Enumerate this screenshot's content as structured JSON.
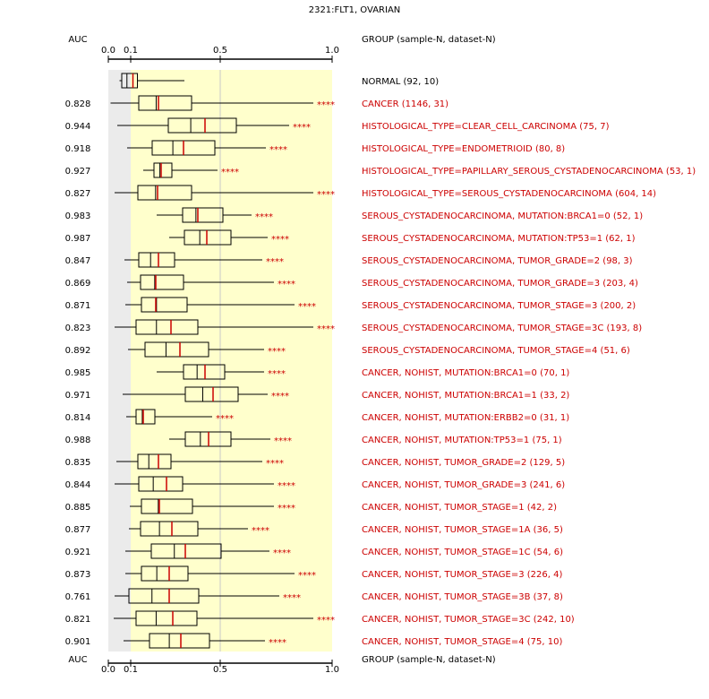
{
  "chart_data": {
    "type": "boxplot",
    "title": "2321:FLT1, OVARIAN",
    "auc_label": "AUC",
    "group_header": "GROUP (sample-N, dataset-N)",
    "x_ticks": [
      {
        "value": 0.0,
        "label": "0.0"
      },
      {
        "value": 0.1,
        "label": "0.1"
      },
      {
        "value": 0.5,
        "label": "0.5"
      },
      {
        "value": 1.0,
        "label": "1.0"
      }
    ],
    "xlim": [
      0.0,
      1.0
    ],
    "reference_band": [
      0.1,
      1.0
    ],
    "reference_line": 0.5,
    "colors": {
      "normal_text": "#000000",
      "group_text": "#cc0000",
      "median": "#cc0000",
      "band": "#ffffcc",
      "shade": "#ebebeb"
    },
    "groups": [
      {
        "label": "NORMAL (92, 10)",
        "auc": "",
        "sig": "",
        "is_reference": true,
        "stats": {
          "min": 0.05,
          "q1": 0.06,
          "median": 0.11,
          "q3": 0.13,
          "max": 0.34
        }
      },
      {
        "label": "CANCER (1146, 31)",
        "auc": "0.828",
        "sig": "****",
        "stats": {
          "min": 0.01,
          "q1": 0.136,
          "median": 0.224,
          "q3": 0.372,
          "max": 0.916
        }
      },
      {
        "label": "HISTOLOGICAL_TYPE=CLEAR_CELL_CARCINOMA (75, 7)",
        "auc": "0.944",
        "sig": "****",
        "stats": {
          "min": 0.04,
          "q1": 0.268,
          "median": 0.432,
          "q3": 0.572,
          "max": 0.808
        }
      },
      {
        "label": "HISTOLOGICAL_TYPE=ENDOMETRIOID (80, 8)",
        "auc": "0.918",
        "sig": "****",
        "stats": {
          "min": 0.084,
          "q1": 0.196,
          "median": 0.336,
          "q3": 0.476,
          "max": 0.704
        }
      },
      {
        "label": "HISTOLOGICAL_TYPE=PAPILLARY_SEROUS_CYSTADENOCARCINOMA (53, 1)",
        "auc": "0.927",
        "sig": "****",
        "stats": {
          "min": 0.156,
          "q1": 0.204,
          "median": 0.236,
          "q3": 0.284,
          "max": 0.488
        }
      },
      {
        "label": "HISTOLOGICAL_TYPE=SEROUS_CYSTADENOCARCINOMA (604, 14)",
        "auc": "0.827",
        "sig": "****",
        "stats": {
          "min": 0.028,
          "q1": 0.132,
          "median": 0.22,
          "q3": 0.372,
          "max": 0.916
        }
      },
      {
        "label": "SEROUS_CYSTADENOCARCINOMA, MUTATION:BRCA1=0 (52, 1)",
        "auc": "0.983",
        "sig": "****",
        "stats": {
          "min": 0.216,
          "q1": 0.332,
          "median": 0.4,
          "q3": 0.512,
          "max": 0.64
        }
      },
      {
        "label": "SEROUS_CYSTADENOCARCINOMA, MUTATION:TP53=1 (62, 1)",
        "auc": "0.987",
        "sig": "****",
        "stats": {
          "min": 0.272,
          "q1": 0.34,
          "median": 0.44,
          "q3": 0.548,
          "max": 0.712
        }
      },
      {
        "label": "SEROUS_CYSTADENOCARCINOMA, TUMOR_GRADE=2 (98, 3)",
        "auc": "0.847",
        "sig": "****",
        "stats": {
          "min": 0.072,
          "q1": 0.136,
          "median": 0.224,
          "q3": 0.296,
          "max": 0.688
        }
      },
      {
        "label": "SEROUS_CYSTADENOCARCINOMA, TUMOR_GRADE=3 (203, 4)",
        "auc": "0.869",
        "sig": "****",
        "stats": {
          "min": 0.084,
          "q1": 0.144,
          "median": 0.212,
          "q3": 0.336,
          "max": 0.74
        }
      },
      {
        "label": "SEROUS_CYSTADENOCARCINOMA, TUMOR_STAGE=3 (200, 2)",
        "auc": "0.871",
        "sig": "****",
        "stats": {
          "min": 0.076,
          "q1": 0.148,
          "median": 0.212,
          "q3": 0.352,
          "max": 0.832
        }
      },
      {
        "label": "SEROUS_CYSTADENOCARCINOMA, TUMOR_STAGE=3C (193, 8)",
        "auc": "0.823",
        "sig": "****",
        "stats": {
          "min": 0.028,
          "q1": 0.124,
          "median": 0.28,
          "q3": 0.4,
          "max": 0.916
        }
      },
      {
        "label": "SEROUS_CYSTADENOCARCINOMA, TUMOR_STAGE=4 (51, 6)",
        "auc": "0.892",
        "sig": "****",
        "stats": {
          "min": 0.088,
          "q1": 0.164,
          "median": 0.32,
          "q3": 0.448,
          "max": 0.696
        }
      },
      {
        "label": "CANCER, NOHIST, MUTATION:BRCA1=0 (70, 1)",
        "auc": "0.985",
        "sig": "****",
        "stats": {
          "min": 0.216,
          "q1": 0.336,
          "median": 0.432,
          "q3": 0.52,
          "max": 0.696
        }
      },
      {
        "label": "CANCER, NOHIST, MUTATION:BRCA1=1 (33, 2)",
        "auc": "0.971",
        "sig": "****",
        "stats": {
          "min": 0.064,
          "q1": 0.344,
          "median": 0.468,
          "q3": 0.58,
          "max": 0.712
        }
      },
      {
        "label": "CANCER, NOHIST, MUTATION:ERBB2=0 (31, 1)",
        "auc": "0.814",
        "sig": "****",
        "stats": {
          "min": 0.08,
          "q1": 0.124,
          "median": 0.156,
          "q3": 0.208,
          "max": 0.464
        }
      },
      {
        "label": "CANCER, NOHIST, MUTATION:TP53=1 (75, 1)",
        "auc": "0.988",
        "sig": "****",
        "stats": {
          "min": 0.272,
          "q1": 0.344,
          "median": 0.448,
          "q3": 0.548,
          "max": 0.724
        }
      },
      {
        "label": "CANCER, NOHIST, TUMOR_GRADE=2 (129, 5)",
        "auc": "0.835",
        "sig": "****",
        "stats": {
          "min": 0.036,
          "q1": 0.132,
          "median": 0.224,
          "q3": 0.28,
          "max": 0.688
        }
      },
      {
        "label": "CANCER, NOHIST, TUMOR_GRADE=3 (241, 6)",
        "auc": "0.844",
        "sig": "****",
        "stats": {
          "min": 0.028,
          "q1": 0.136,
          "median": 0.26,
          "q3": 0.332,
          "max": 0.74
        }
      },
      {
        "label": "CANCER, NOHIST, TUMOR_STAGE=1 (42, 2)",
        "auc": "0.885",
        "sig": "****",
        "stats": {
          "min": 0.096,
          "q1": 0.148,
          "median": 0.228,
          "q3": 0.376,
          "max": 0.74
        }
      },
      {
        "label": "CANCER, NOHIST, TUMOR_STAGE=1A (36, 5)",
        "auc": "0.877",
        "sig": "****",
        "stats": {
          "min": 0.092,
          "q1": 0.144,
          "median": 0.284,
          "q3": 0.4,
          "max": 0.624
        }
      },
      {
        "label": "CANCER, NOHIST, TUMOR_STAGE=1C (54, 6)",
        "auc": "0.921",
        "sig": "****",
        "stats": {
          "min": 0.076,
          "q1": 0.192,
          "median": 0.344,
          "q3": 0.504,
          "max": 0.72
        }
      },
      {
        "label": "CANCER, NOHIST, TUMOR_STAGE=3 (226, 4)",
        "auc": "0.873",
        "sig": "****",
        "stats": {
          "min": 0.076,
          "q1": 0.148,
          "median": 0.272,
          "q3": 0.356,
          "max": 0.832
        }
      },
      {
        "label": "CANCER, NOHIST, TUMOR_STAGE=3B (37, 8)",
        "auc": "0.761",
        "sig": "****",
        "stats": {
          "min": 0.028,
          "q1": 0.092,
          "median": 0.272,
          "q3": 0.404,
          "max": 0.764
        }
      },
      {
        "label": "CANCER, NOHIST, TUMOR_STAGE=3C (242, 10)",
        "auc": "0.821",
        "sig": "****",
        "stats": {
          "min": 0.024,
          "q1": 0.124,
          "median": 0.288,
          "q3": 0.396,
          "max": 0.916
        }
      },
      {
        "label": "CANCER, NOHIST, TUMOR_STAGE=4 (75, 10)",
        "auc": "0.901",
        "sig": "****",
        "stats": {
          "min": 0.068,
          "q1": 0.184,
          "median": 0.324,
          "q3": 0.452,
          "max": 0.7
        }
      }
    ]
  }
}
